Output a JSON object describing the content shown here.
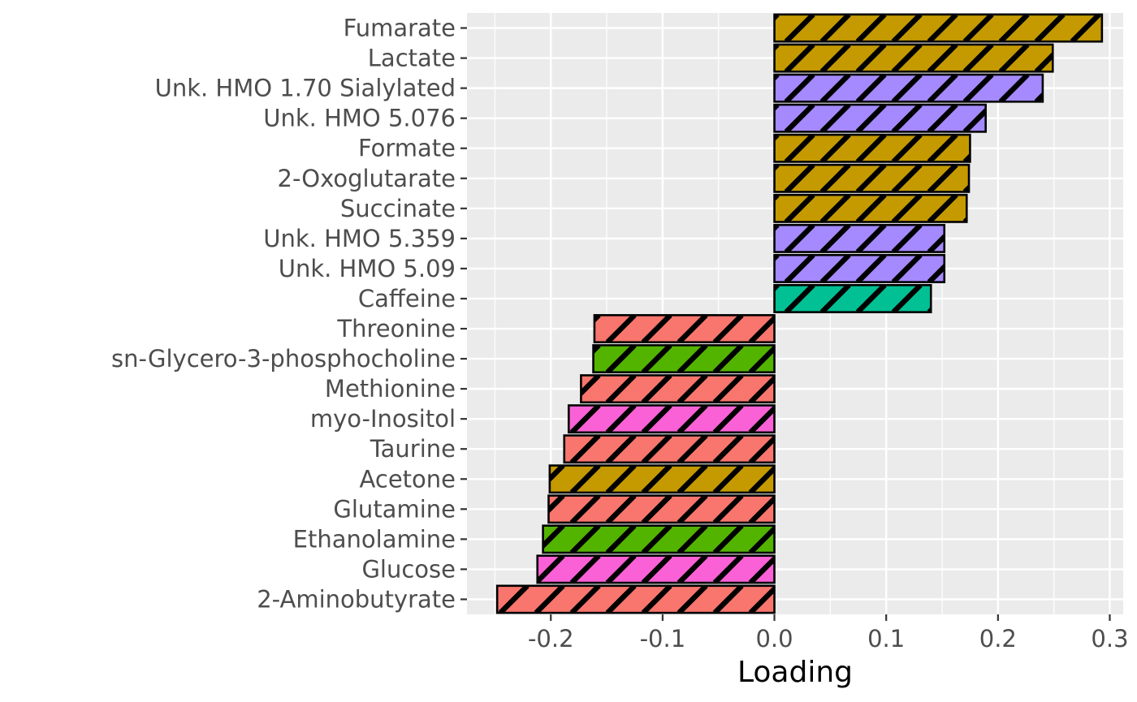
{
  "chart_data": {
    "type": "bar",
    "orientation": "horizontal",
    "title": "",
    "xlabel": "Loading",
    "ylabel": "",
    "xlim": [
      -0.275,
      0.312
    ],
    "xticks": [
      -0.2,
      -0.1,
      0.0,
      0.1,
      0.2,
      0.3
    ],
    "xtick_labels": [
      "-0.2",
      "-0.1",
      "0.0",
      "0.1",
      "0.2",
      "0.3"
    ],
    "grid": true,
    "bar_pattern": "diagonal-stripes",
    "categories": [
      "Fumarate",
      "Lactate",
      "Unk. HMO 1.70 Sialylated",
      "Unk. HMO 5.076",
      "Formate",
      "2-Oxoglutarate",
      "Succinate",
      "Unk. HMO 5.359",
      "Unk. HMO 5.09",
      "Caffeine",
      "Threonine",
      "sn-Glycero-3-phosphocholine",
      "Methionine",
      "myo-Inositol",
      "Taurine",
      "Acetone",
      "Glutamine",
      "Ethanolamine",
      "Glucose",
      "2-Aminobutyrate"
    ],
    "values": [
      0.293,
      0.249,
      0.24,
      0.189,
      0.175,
      0.174,
      0.172,
      0.152,
      0.152,
      0.14,
      -0.161,
      -0.162,
      -0.173,
      -0.184,
      -0.188,
      -0.201,
      -0.202,
      -0.207,
      -0.212,
      -0.248
    ],
    "colors": [
      "#C49A00",
      "#C49A00",
      "#A58AFF",
      "#A58AFF",
      "#C49A00",
      "#C49A00",
      "#C49A00",
      "#A58AFF",
      "#A58AFF",
      "#00C094",
      "#F8766D",
      "#53B400",
      "#F8766D",
      "#FB61D7",
      "#F8766D",
      "#C49A00",
      "#F8766D",
      "#53B400",
      "#FB61D7",
      "#F8766D"
    ]
  }
}
